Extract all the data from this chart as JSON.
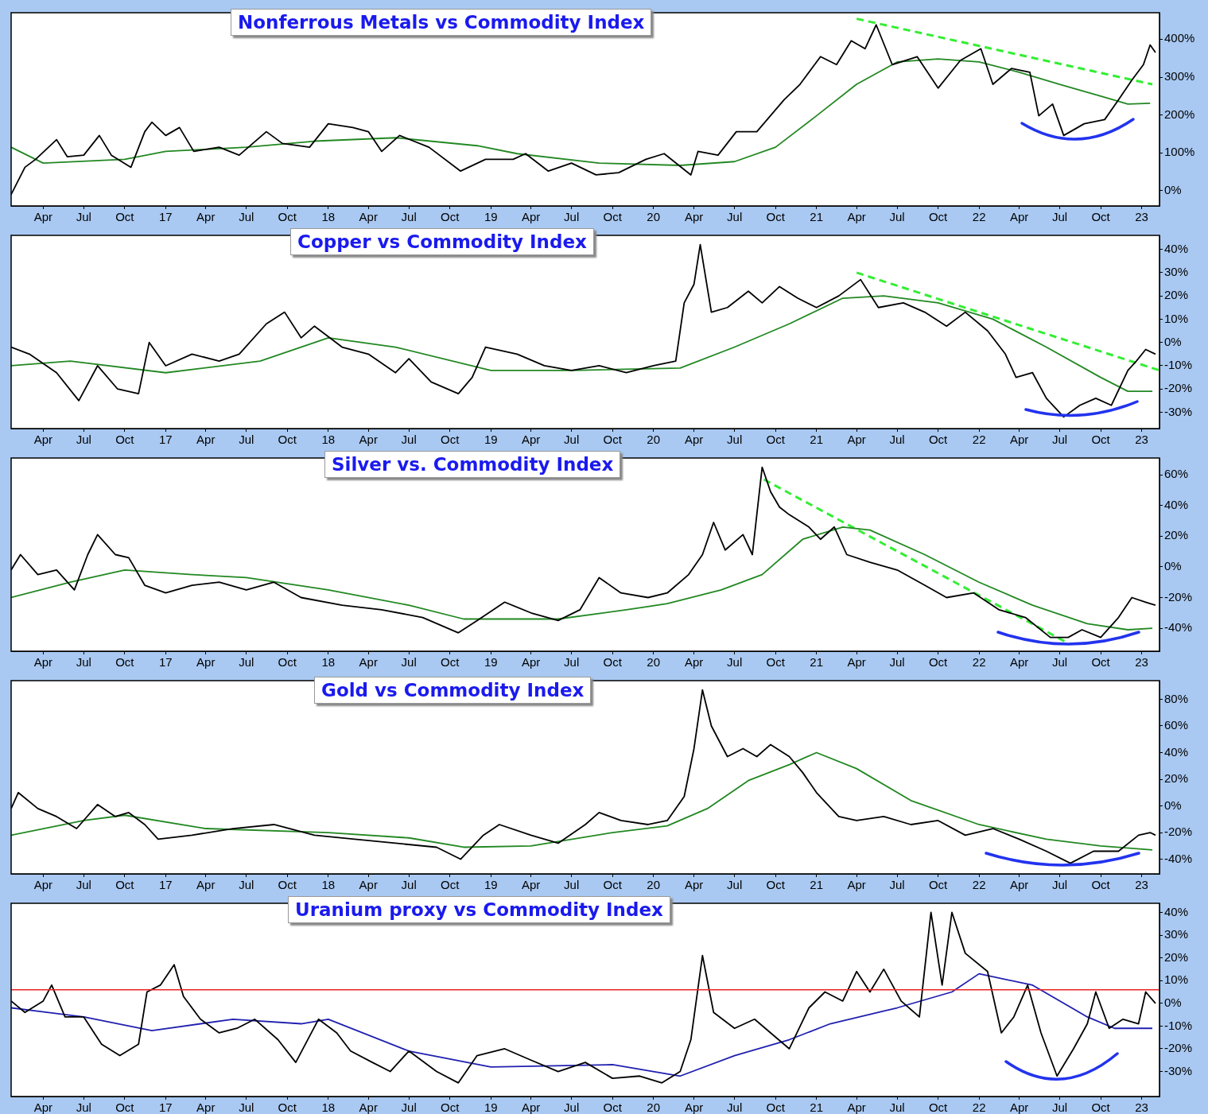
{
  "chart_data": [
    {
      "type": "line",
      "title": "Nonferrous Metals vs Commodity Index",
      "xlim": [
        "2016-01-20",
        "2023-02-10"
      ],
      "ylim": [
        -40,
        470
      ],
      "xticks": [
        {
          "value": "2016-04",
          "label": "Apr"
        },
        {
          "value": "2016-07",
          "label": "Jul"
        },
        {
          "value": "2016-10",
          "label": "Oct"
        },
        {
          "value": "2017-01",
          "label": "17"
        },
        {
          "value": "2017-04",
          "label": "Apr"
        },
        {
          "value": "2017-07",
          "label": "Jul"
        },
        {
          "value": "2017-10",
          "label": "Oct"
        },
        {
          "value": "2018-01",
          "label": "18"
        },
        {
          "value": "2018-04",
          "label": "Apr"
        },
        {
          "value": "2018-07",
          "label": "Jul"
        },
        {
          "value": "2018-10",
          "label": "Oct"
        },
        {
          "value": "2019-01",
          "label": "19"
        },
        {
          "value": "2019-04",
          "label": "Apr"
        },
        {
          "value": "2019-07",
          "label": "Jul"
        },
        {
          "value": "2019-10",
          "label": "Oct"
        },
        {
          "value": "2020-01",
          "label": "20"
        },
        {
          "value": "2020-04",
          "label": "Apr"
        },
        {
          "value": "2020-07",
          "label": "Jul"
        },
        {
          "value": "2020-10",
          "label": "Oct"
        },
        {
          "value": "2021-01",
          "label": "21"
        },
        {
          "value": "2021-04",
          "label": "Apr"
        },
        {
          "value": "2021-07",
          "label": "Jul"
        },
        {
          "value": "2021-10",
          "label": "Oct"
        },
        {
          "value": "2022-01",
          "label": "22"
        },
        {
          "value": "2022-04",
          "label": "Apr"
        },
        {
          "value": "2022-07",
          "label": "Jul"
        },
        {
          "value": "2022-10",
          "label": "Oct"
        },
        {
          "value": "2023-01",
          "label": "23"
        }
      ],
      "yticks": [
        {
          "value": 0,
          "label": "0%"
        },
        {
          "value": 100,
          "label": "100%"
        },
        {
          "value": 200,
          "label": "200%"
        },
        {
          "value": 300,
          "label": "300%"
        },
        {
          "value": 400,
          "label": "400%"
        }
      ],
      "series": [
        {
          "color": "#000000",
          "x": [
            "2016-01-20",
            "2016-02-20",
            "2016-03-15",
            "2016-05-01",
            "2016-05-25",
            "2016-07-01",
            "2016-08-05",
            "2016-09-01",
            "2016-10-15",
            "2016-11-15",
            "2016-12-01",
            "2017-01-01",
            "2017-02-01",
            "2017-03-05",
            "2017-05-01",
            "2017-06-15",
            "2017-08-15",
            "2017-09-20",
            "2017-11-20",
            "2018-01-01",
            "2018-02-25",
            "2018-04-01",
            "2018-05-01",
            "2018-06-10",
            "2018-08-15",
            "2018-10-25",
            "2018-12-20",
            "2019-02-20",
            "2019-03-20",
            "2019-05-10",
            "2019-07-01",
            "2019-08-25",
            "2019-10-15",
            "2019-12-15",
            "2020-01-25",
            "2020-03-25",
            "2020-04-10",
            "2020-05-25",
            "2020-07-05",
            "2020-08-20",
            "2020-10-20",
            "2020-11-25",
            "2021-01-10",
            "2021-02-15",
            "2021-03-20",
            "2021-04-20",
            "2021-05-15",
            "2021-06-20",
            "2021-08-15",
            "2021-10-01",
            "2021-11-20",
            "2022-01-05",
            "2022-02-01",
            "2022-03-15",
            "2022-04-25",
            "2022-05-15",
            "2022-06-15",
            "2022-07-10",
            "2022-08-25",
            "2022-10-10",
            "2022-11-10",
            "2022-12-10",
            "2023-01-05",
            "2023-01-20",
            "2023-02-01"
          ],
          "values": [
            -10,
            62,
            83,
            135,
            90,
            94,
            146,
            94,
            62,
            156,
            181,
            146,
            167,
            104,
            115,
            94,
            156,
            125,
            115,
            177,
            167,
            156,
            104,
            146,
            115,
            52,
            83,
            83,
            98,
            52,
            73,
            42,
            48,
            83,
            98,
            42,
            104,
            94,
            156,
            156,
            240,
            281,
            354,
            333,
            396,
            375,
            438,
            333,
            354,
            271,
            344,
            375,
            281,
            323,
            313,
            198,
            229,
            146,
            177,
            188,
            240,
            292,
            333,
            385,
            365
          ]
        },
        {
          "color": "#228822",
          "x": [
            "2016-01-20",
            "2016-04-01",
            "2016-10-01",
            "2017-01-01",
            "2017-07-01",
            "2017-12-01",
            "2018-06-01",
            "2018-12-01",
            "2019-03-01",
            "2019-09-01",
            "2020-03-01",
            "2020-07-01",
            "2020-10-01",
            "2021-01-01",
            "2021-04-01",
            "2021-07-01",
            "2021-10-01",
            "2022-01-01",
            "2022-04-01",
            "2022-07-01",
            "2022-10-01",
            "2022-12-01",
            "2023-01-20"
          ],
          "values": [
            115,
            73,
            83,
            104,
            115,
            131,
            140,
            119,
            98,
            73,
            67,
            77,
            115,
            198,
            281,
            340,
            348,
            340,
            313,
            281,
            250,
            229,
            231
          ]
        },
        {
          "color": "#33ee33",
          "line_style": "dashed",
          "x": [
            "2021-04-01",
            "2023-01-25"
          ],
          "values": [
            454,
            281
          ]
        }
      ]
    },
    {
      "type": "line",
      "title": "Copper vs Commodity Index",
      "xlim": [
        "2016-01-20",
        "2023-02-10"
      ],
      "ylim": [
        -37,
        46
      ],
      "xticks": [
        {
          "value": "2016-04",
          "label": "Apr"
        },
        {
          "value": "2016-07",
          "label": "Jul"
        },
        {
          "value": "2016-10",
          "label": "Oct"
        },
        {
          "value": "2017-01",
          "label": "17"
        },
        {
          "value": "2017-04",
          "label": "Apr"
        },
        {
          "value": "2017-07",
          "label": "Jul"
        },
        {
          "value": "2017-10",
          "label": "Oct"
        },
        {
          "value": "2018-01",
          "label": "18"
        },
        {
          "value": "2018-04",
          "label": "Apr"
        },
        {
          "value": "2018-07",
          "label": "Jul"
        },
        {
          "value": "2018-10",
          "label": "Oct"
        },
        {
          "value": "2019-01",
          "label": "19"
        },
        {
          "value": "2019-04",
          "label": "Apr"
        },
        {
          "value": "2019-07",
          "label": "Jul"
        },
        {
          "value": "2019-10",
          "label": "Oct"
        },
        {
          "value": "2020-01",
          "label": "20"
        },
        {
          "value": "2020-04",
          "label": "Apr"
        },
        {
          "value": "2020-07",
          "label": "Jul"
        },
        {
          "value": "2020-10",
          "label": "Oct"
        },
        {
          "value": "2021-01",
          "label": "21"
        },
        {
          "value": "2021-04",
          "label": "Apr"
        },
        {
          "value": "2021-07",
          "label": "Jul"
        },
        {
          "value": "2021-10",
          "label": "Oct"
        },
        {
          "value": "2022-01",
          "label": "22"
        },
        {
          "value": "2022-04",
          "label": "Apr"
        },
        {
          "value": "2022-07",
          "label": "Jul"
        },
        {
          "value": "2022-10",
          "label": "Oct"
        },
        {
          "value": "2023-01",
          "label": "23"
        }
      ],
      "yticks": [
        {
          "value": -30,
          "label": "-30%"
        },
        {
          "value": -20,
          "label": "-20%"
        },
        {
          "value": -10,
          "label": "-10%"
        },
        {
          "value": 0,
          "label": "0%"
        },
        {
          "value": 10,
          "label": "10%"
        },
        {
          "value": 20,
          "label": "20%"
        },
        {
          "value": 30,
          "label": "30%"
        },
        {
          "value": 40,
          "label": "40%"
        }
      ],
      "series": [
        {
          "color": "#000000",
          "x": [
            "2016-01-20",
            "2016-03-01",
            "2016-05-01",
            "2016-06-20",
            "2016-08-01",
            "2016-09-15",
            "2016-11-01",
            "2016-11-25",
            "2017-01-01",
            "2017-03-01",
            "2017-05-01",
            "2017-06-15",
            "2017-08-15",
            "2017-09-25",
            "2017-11-01",
            "2017-12-01",
            "2018-02-01",
            "2018-04-01",
            "2018-06-01",
            "2018-07-01",
            "2018-08-20",
            "2018-10-20",
            "2018-11-20",
            "2018-12-20",
            "2019-03-01",
            "2019-05-01",
            "2019-07-01",
            "2019-09-01",
            "2019-11-01",
            "2020-01-01",
            "2020-02-20",
            "2020-03-10",
            "2020-04-01",
            "2020-04-15",
            "2020-05-10",
            "2020-06-15",
            "2020-08-01",
            "2020-09-01",
            "2020-10-10",
            "2020-11-20",
            "2021-01-01",
            "2021-02-20",
            "2021-04-10",
            "2021-05-20",
            "2021-07-15",
            "2021-09-01",
            "2021-10-20",
            "2021-12-01",
            "2022-01-20",
            "2022-03-01",
            "2022-03-25",
            "2022-05-01",
            "2022-06-01",
            "2022-07-10",
            "2022-08-15",
            "2022-09-20",
            "2022-10-25",
            "2022-12-01",
            "2022-12-20",
            "2023-01-10",
            "2023-02-01"
          ],
          "values": [
            -2,
            -5,
            -13,
            -25,
            -10,
            -20,
            -22,
            0,
            -10,
            -5,
            -8,
            -5,
            8,
            13,
            2,
            7,
            -2,
            -5,
            -13,
            -7,
            -17,
            -22,
            -15,
            -2,
            -5,
            -10,
            -12,
            -10,
            -13,
            -10,
            -8,
            17,
            25,
            42,
            13,
            15,
            22,
            17,
            24,
            19,
            15,
            20,
            27,
            15,
            17,
            13,
            7,
            13,
            5,
            -5,
            -15,
            -13,
            -24,
            -32,
            -27,
            -24,
            -27,
            -12,
            -8,
            -3,
            -5
          ]
        },
        {
          "color": "#228822",
          "x": [
            "2016-01-20",
            "2016-06-01",
            "2017-01-01",
            "2017-08-01",
            "2018-01-01",
            "2018-06-01",
            "2019-01-01",
            "2019-07-01",
            "2020-03-01",
            "2020-07-01",
            "2020-11-01",
            "2021-03-01",
            "2021-06-01",
            "2021-10-01",
            "2022-02-01",
            "2022-06-01",
            "2022-10-01",
            "2022-12-01",
            "2023-01-25"
          ],
          "values": [
            -10,
            -8,
            -13,
            -8,
            2,
            -2,
            -12,
            -12,
            -11,
            -2,
            8,
            19,
            20,
            17,
            10,
            -2,
            -15,
            -21,
            -21
          ]
        },
        {
          "color": "#33ee33",
          "line_style": "dashed",
          "x": [
            "2021-04-01",
            "2023-02-10"
          ],
          "values": [
            30,
            -12
          ]
        }
      ]
    },
    {
      "type": "line",
      "title": "Silver vs. Commodity Index",
      "xlim": [
        "2016-01-20",
        "2023-02-10"
      ],
      "ylim": [
        -55,
        71
      ],
      "xticks": [
        {
          "value": "2016-04",
          "label": "Apr"
        },
        {
          "value": "2016-07",
          "label": "Jul"
        },
        {
          "value": "2016-10",
          "label": "Oct"
        },
        {
          "value": "2017-01",
          "label": "17"
        },
        {
          "value": "2017-04",
          "label": "Apr"
        },
        {
          "value": "2017-07",
          "label": "Jul"
        },
        {
          "value": "2017-10",
          "label": "Oct"
        },
        {
          "value": "2018-01",
          "label": "18"
        },
        {
          "value": "2018-04",
          "label": "Apr"
        },
        {
          "value": "2018-07",
          "label": "Jul"
        },
        {
          "value": "2018-10",
          "label": "Oct"
        },
        {
          "value": "2019-01",
          "label": "19"
        },
        {
          "value": "2019-04",
          "label": "Apr"
        },
        {
          "value": "2019-07",
          "label": "Jul"
        },
        {
          "value": "2019-10",
          "label": "Oct"
        },
        {
          "value": "2020-01",
          "label": "20"
        },
        {
          "value": "2020-04",
          "label": "Apr"
        },
        {
          "value": "2020-07",
          "label": "Jul"
        },
        {
          "value": "2020-10",
          "label": "Oct"
        },
        {
          "value": "2021-01",
          "label": "21"
        },
        {
          "value": "2021-04",
          "label": "Apr"
        },
        {
          "value": "2021-07",
          "label": "Jul"
        },
        {
          "value": "2021-10",
          "label": "Oct"
        },
        {
          "value": "2022-01",
          "label": "22"
        },
        {
          "value": "2022-04",
          "label": "Apr"
        },
        {
          "value": "2022-07",
          "label": "Jul"
        },
        {
          "value": "2022-10",
          "label": "Oct"
        },
        {
          "value": "2023-01",
          "label": "23"
        }
      ],
      "yticks": [
        {
          "value": -40,
          "label": "-40%"
        },
        {
          "value": -20,
          "label": "-20%"
        },
        {
          "value": 0,
          "label": "0%"
        },
        {
          "value": 20,
          "label": "20%"
        },
        {
          "value": 40,
          "label": "40%"
        },
        {
          "value": 60,
          "label": "60%"
        }
      ],
      "series": [
        {
          "color": "#000000",
          "x": [
            "2016-01-20",
            "2016-02-10",
            "2016-03-20",
            "2016-05-01",
            "2016-06-10",
            "2016-07-10",
            "2016-08-01",
            "2016-09-10",
            "2016-10-10",
            "2016-11-15",
            "2017-01-01",
            "2017-03-01",
            "2017-05-01",
            "2017-07-01",
            "2017-09-01",
            "2017-11-01",
            "2018-02-01",
            "2018-05-01",
            "2018-08-01",
            "2018-10-20",
            "2018-12-01",
            "2019-02-01",
            "2019-04-01",
            "2019-06-01",
            "2019-07-20",
            "2019-09-01",
            "2019-10-20",
            "2019-12-20",
            "2020-02-01",
            "2020-03-20",
            "2020-04-20",
            "2020-05-15",
            "2020-06-10",
            "2020-07-20",
            "2020-08-10",
            "2020-08-20",
            "2020-09-01",
            "2020-09-20",
            "2020-10-10",
            "2020-11-01",
            "2020-12-15",
            "2021-01-10",
            "2021-02-10",
            "2021-03-10",
            "2021-05-01",
            "2021-07-01",
            "2021-09-01",
            "2021-10-20",
            "2021-12-20",
            "2022-02-15",
            "2022-04-15",
            "2022-06-10",
            "2022-07-20",
            "2022-08-20",
            "2022-10-01",
            "2022-11-10",
            "2022-12-10",
            "2023-01-10",
            "2023-02-01"
          ],
          "values": [
            -2,
            8,
            -5,
            -2,
            -15,
            8,
            21,
            8,
            6,
            -12,
            -17,
            -12,
            -10,
            -15,
            -10,
            -20,
            -25,
            -28,
            -33,
            -43,
            -35,
            -23,
            -30,
            -35,
            -28,
            -7,
            -17,
            -20,
            -17,
            -5,
            8,
            29,
            11,
            21,
            8,
            34,
            65,
            49,
            39,
            34,
            26,
            18,
            26,
            8,
            3,
            -2,
            -12,
            -20,
            -17,
            -28,
            -33,
            -46,
            -46,
            -41,
            -46,
            -33,
            -20,
            -23,
            -25
          ]
        },
        {
          "color": "#228822",
          "x": [
            "2016-01-20",
            "2016-06-01",
            "2016-10-01",
            "2017-03-01",
            "2017-07-01",
            "2018-01-01",
            "2018-07-01",
            "2018-11-01",
            "2019-06-01",
            "2019-11-01",
            "2020-02-01",
            "2020-06-01",
            "2020-09-01",
            "2020-12-01",
            "2021-03-01",
            "2021-05-01",
            "2021-09-01",
            "2022-01-01",
            "2022-05-01",
            "2022-09-01",
            "2022-12-01",
            "2023-01-25"
          ],
          "values": [
            -20,
            -10,
            -2,
            -5,
            -7,
            -15,
            -25,
            -34,
            -34,
            -28,
            -24,
            -15,
            -5,
            18,
            26,
            24,
            8,
            -10,
            -25,
            -37,
            -41,
            -40
          ]
        },
        {
          "color": "#33ee33",
          "line_style": "dashed",
          "x": [
            "2020-09-05",
            "2022-07-15"
          ],
          "values": [
            57,
            -49
          ]
        }
      ]
    },
    {
      "type": "line",
      "title": "Gold vs Commodity Index",
      "xlim": [
        "2016-01-20",
        "2023-02-10"
      ],
      "ylim": [
        -51,
        94
      ],
      "xticks": [
        {
          "value": "2016-04",
          "label": "Apr"
        },
        {
          "value": "2016-07",
          "label": "Jul"
        },
        {
          "value": "2016-10",
          "label": "Oct"
        },
        {
          "value": "2017-01",
          "label": "17"
        },
        {
          "value": "2017-04",
          "label": "Apr"
        },
        {
          "value": "2017-07",
          "label": "Jul"
        },
        {
          "value": "2017-10",
          "label": "Oct"
        },
        {
          "value": "2018-01",
          "label": "18"
        },
        {
          "value": "2018-04",
          "label": "Apr"
        },
        {
          "value": "2018-07",
          "label": "Jul"
        },
        {
          "value": "2018-10",
          "label": "Oct"
        },
        {
          "value": "2019-01",
          "label": "19"
        },
        {
          "value": "2019-04",
          "label": "Apr"
        },
        {
          "value": "2019-07",
          "label": "Jul"
        },
        {
          "value": "2019-10",
          "label": "Oct"
        },
        {
          "value": "2020-01",
          "label": "20"
        },
        {
          "value": "2020-04",
          "label": "Apr"
        },
        {
          "value": "2020-07",
          "label": "Jul"
        },
        {
          "value": "2020-10",
          "label": "Oct"
        },
        {
          "value": "2021-01",
          "label": "21"
        },
        {
          "value": "2021-04",
          "label": "Apr"
        },
        {
          "value": "2021-07",
          "label": "Jul"
        },
        {
          "value": "2021-10",
          "label": "Oct"
        },
        {
          "value": "2022-01",
          "label": "22"
        },
        {
          "value": "2022-04",
          "label": "Apr"
        },
        {
          "value": "2022-07",
          "label": "Jul"
        },
        {
          "value": "2022-10",
          "label": "Oct"
        },
        {
          "value": "2023-01",
          "label": "23"
        }
      ],
      "yticks": [
        {
          "value": -40,
          "label": "-40%"
        },
        {
          "value": -20,
          "label": "-20%"
        },
        {
          "value": 0,
          "label": "0%"
        },
        {
          "value": 20,
          "label": "20%"
        },
        {
          "value": 40,
          "label": "40%"
        },
        {
          "value": 60,
          "label": "60%"
        },
        {
          "value": 80,
          "label": "80%"
        }
      ],
      "series": [
        {
          "color": "#000000",
          "x": [
            "2016-01-20",
            "2016-02-05",
            "2016-03-20",
            "2016-05-01",
            "2016-06-15",
            "2016-08-01",
            "2016-09-10",
            "2016-10-10",
            "2016-11-15",
            "2016-12-15",
            "2017-03-01",
            "2017-06-01",
            "2017-09-01",
            "2017-12-01",
            "2018-03-01",
            "2018-06-01",
            "2018-09-01",
            "2018-10-25",
            "2018-12-15",
            "2019-01-20",
            "2019-04-01",
            "2019-06-01",
            "2019-08-01",
            "2019-09-01",
            "2019-10-20",
            "2019-12-20",
            "2020-02-01",
            "2020-03-10",
            "2020-04-01",
            "2020-04-20",
            "2020-05-10",
            "2020-06-15",
            "2020-07-20",
            "2020-08-20",
            "2020-09-20",
            "2020-11-01",
            "2020-12-01",
            "2021-01-01",
            "2021-02-20",
            "2021-04-01",
            "2021-06-01",
            "2021-08-01",
            "2021-10-01",
            "2021-12-01",
            "2022-02-01",
            "2022-04-01",
            "2022-06-01",
            "2022-07-25",
            "2022-09-15",
            "2022-11-10",
            "2022-12-25",
            "2023-01-20",
            "2023-02-01"
          ],
          "values": [
            -2,
            10,
            -2,
            -8,
            -17,
            1,
            -8,
            -5,
            -14,
            -25,
            -22,
            -17,
            -14,
            -22,
            -25,
            -28,
            -31,
            -40,
            -22,
            -14,
            -22,
            -28,
            -14,
            -5,
            -11,
            -14,
            -11,
            7,
            43,
            87,
            60,
            37,
            43,
            37,
            46,
            37,
            25,
            10,
            -8,
            -11,
            -8,
            -14,
            -11,
            -22,
            -17,
            -25,
            -34,
            -43,
            -34,
            -34,
            -22,
            -20,
            -22
          ]
        },
        {
          "color": "#228822",
          "x": [
            "2016-01-20",
            "2016-07-01",
            "2016-10-01",
            "2017-04-01",
            "2018-01-01",
            "2018-07-01",
            "2018-11-01",
            "2019-04-01",
            "2019-10-01",
            "2020-02-01",
            "2020-05-01",
            "2020-08-01",
            "2020-11-01",
            "2021-01-01",
            "2021-04-01",
            "2021-08-01",
            "2022-01-01",
            "2022-06-01",
            "2022-10-01",
            "2023-01-25"
          ],
          "values": [
            -22,
            -11,
            -7,
            -17,
            -20,
            -24,
            -31,
            -30,
            -20,
            -15,
            -2,
            19,
            31,
            40,
            28,
            4,
            -14,
            -25,
            -30,
            -33
          ]
        }
      ]
    },
    {
      "type": "line",
      "title": "Uranium proxy vs Commodity Index",
      "xlim": [
        "2016-01-20",
        "2023-02-10"
      ],
      "ylim": [
        -41,
        44
      ],
      "xticks": [
        {
          "value": "2016-04",
          "label": "Apr"
        },
        {
          "value": "2016-07",
          "label": "Jul"
        },
        {
          "value": "2016-10",
          "label": "Oct"
        },
        {
          "value": "2017-01",
          "label": "17"
        },
        {
          "value": "2017-04",
          "label": "Apr"
        },
        {
          "value": "2017-07",
          "label": "Jul"
        },
        {
          "value": "2017-10",
          "label": "Oct"
        },
        {
          "value": "2018-01",
          "label": "18"
        },
        {
          "value": "2018-04",
          "label": "Apr"
        },
        {
          "value": "2018-07",
          "label": "Jul"
        },
        {
          "value": "2018-10",
          "label": "Oct"
        },
        {
          "value": "2019-01",
          "label": "19"
        },
        {
          "value": "2019-04",
          "label": "Apr"
        },
        {
          "value": "2019-07",
          "label": "Jul"
        },
        {
          "value": "2019-10",
          "label": "Oct"
        },
        {
          "value": "2020-01",
          "label": "20"
        },
        {
          "value": "2020-04",
          "label": "Apr"
        },
        {
          "value": "2020-07",
          "label": "Jul"
        },
        {
          "value": "2020-10",
          "label": "Oct"
        },
        {
          "value": "2021-01",
          "label": "21"
        },
        {
          "value": "2021-04",
          "label": "Apr"
        },
        {
          "value": "2021-07",
          "label": "Jul"
        },
        {
          "value": "2021-10",
          "label": "Oct"
        },
        {
          "value": "2022-01",
          "label": "22"
        },
        {
          "value": "2022-04",
          "label": "Apr"
        },
        {
          "value": "2022-07",
          "label": "Jul"
        },
        {
          "value": "2022-10",
          "label": "Oct"
        },
        {
          "value": "2023-01",
          "label": "23"
        }
      ],
      "yticks": [
        {
          "value": -30,
          "label": "-30%"
        },
        {
          "value": -20,
          "label": "-20%"
        },
        {
          "value": -10,
          "label": "-10%"
        },
        {
          "value": 0,
          "label": "0%"
        },
        {
          "value": 10,
          "label": "10%"
        },
        {
          "value": 20,
          "label": "20%"
        },
        {
          "value": 30,
          "label": "30%"
        },
        {
          "value": 40,
          "label": "40%"
        }
      ],
      "ref_lines": [
        {
          "axis": "y",
          "value": 6,
          "color": "#ee2222"
        }
      ],
      "series": [
        {
          "color": "#000000",
          "x": [
            "2016-01-20",
            "2016-02-20",
            "2016-04-01",
            "2016-04-20",
            "2016-05-20",
            "2016-07-01",
            "2016-08-10",
            "2016-09-20",
            "2016-11-01",
            "2016-11-20",
            "2016-12-20",
            "2017-01-20",
            "2017-02-10",
            "2017-03-20",
            "2017-05-01",
            "2017-06-10",
            "2017-07-20",
            "2017-09-10",
            "2017-10-20",
            "2017-12-10",
            "2018-01-20",
            "2018-02-20",
            "2018-04-10",
            "2018-05-20",
            "2018-07-01",
            "2018-09-01",
            "2018-10-20",
            "2018-12-01",
            "2019-02-01",
            "2019-04-01",
            "2019-06-01",
            "2019-08-01",
            "2019-10-01",
            "2019-12-01",
            "2020-01-20",
            "2020-03-01",
            "2020-03-25",
            "2020-04-20",
            "2020-05-15",
            "2020-07-01",
            "2020-08-15",
            "2020-09-20",
            "2020-11-01",
            "2020-12-15",
            "2021-01-20",
            "2021-03-01",
            "2021-04-01",
            "2021-05-01",
            "2021-06-01",
            "2021-07-10",
            "2021-08-20",
            "2021-09-15",
            "2021-10-10",
            "2021-11-01",
            "2021-12-01",
            "2022-01-20",
            "2022-02-20",
            "2022-03-20",
            "2022-04-20",
            "2022-05-20",
            "2022-06-25",
            "2022-08-01",
            "2022-09-01",
            "2022-09-20",
            "2022-10-20",
            "2022-11-20",
            "2022-12-25",
            "2023-01-10",
            "2023-02-01"
          ],
          "values": [
            1,
            -4,
            1,
            8,
            -6,
            -6,
            -18,
            -23,
            -18,
            5,
            8,
            17,
            3,
            -7,
            -13,
            -11,
            -7,
            -16,
            -26,
            -7,
            -13,
            -21,
            -26,
            -30,
            -21,
            -30,
            -35,
            -23,
            -20,
            -25,
            -30,
            -26,
            -33,
            -32,
            -35,
            -30,
            -16,
            21,
            -4,
            -11,
            -7,
            -13,
            -20,
            -2,
            5,
            1,
            14,
            5,
            15,
            1,
            -6,
            40,
            8,
            40,
            22,
            14,
            -13,
            -6,
            8,
            -13,
            -32,
            -20,
            -9,
            5,
            -11,
            -7,
            -9,
            5,
            0
          ]
        },
        {
          "color": "#2020b0",
          "x": [
            "2016-01-20",
            "2016-07-01",
            "2016-12-01",
            "2017-06-01",
            "2017-11-01",
            "2018-01-01",
            "2018-07-01",
            "2019-01-01",
            "2019-10-01",
            "2020-03-01",
            "2020-07-01",
            "2020-11-01",
            "2021-02-01",
            "2021-07-01",
            "2021-11-01",
            "2022-01-01",
            "2022-05-01",
            "2022-09-01",
            "2022-11-01",
            "2023-01-25"
          ],
          "values": [
            -2,
            -6,
            -12,
            -7,
            -9,
            -7,
            -21,
            -28,
            -27,
            -32,
            -23,
            -16,
            -9,
            -2,
            5,
            13,
            8,
            -6,
            -11,
            -11
          ]
        }
      ]
    }
  ]
}
